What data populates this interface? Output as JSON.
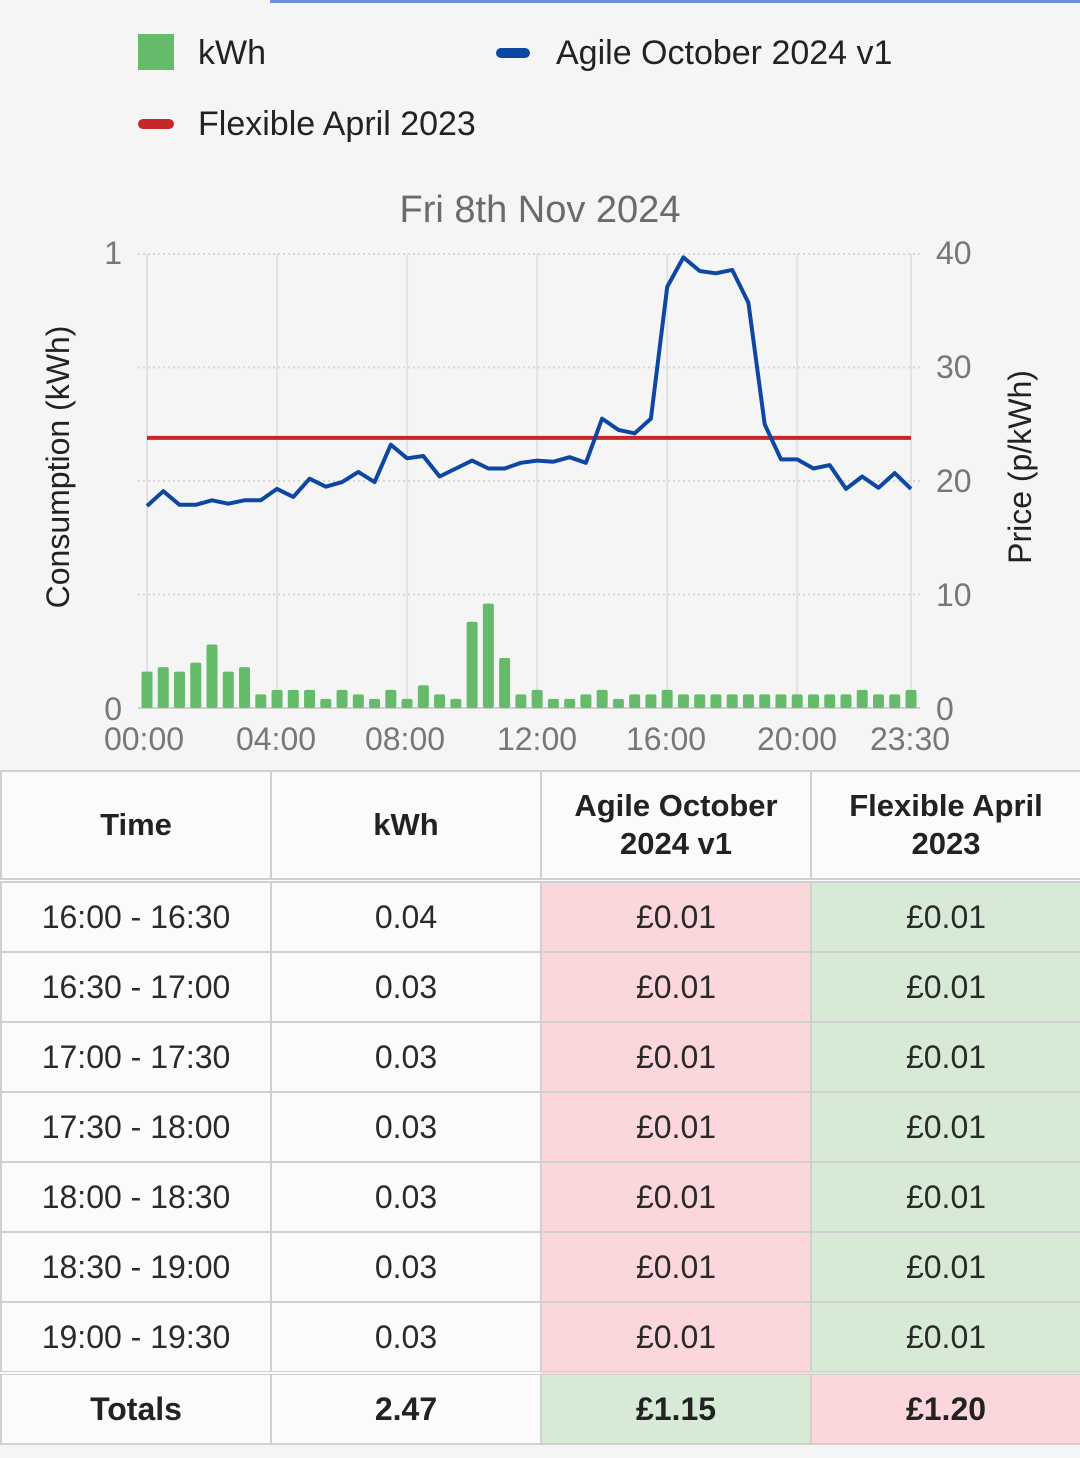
{
  "chart_data": {
    "type": "bar+line",
    "title": "Fri 8th Nov 2024",
    "ylabel_left": "Consumption (kWh)",
    "ylabel_right": "Price (p/kWh)",
    "ylim_left": [
      0,
      1
    ],
    "ylim_right": [
      0,
      40
    ],
    "y_left_ticks": [
      "0",
      "1"
    ],
    "y_right_ticks": [
      "0",
      "10",
      "20",
      "30",
      "40"
    ],
    "x_ticks": [
      "00:00",
      "04:00",
      "08:00",
      "12:00",
      "16:00",
      "20:00",
      "23:30"
    ],
    "grid": true,
    "legend_position": "top",
    "legend": [
      {
        "name": "kWh",
        "type": "bar",
        "color": "#66bb6a"
      },
      {
        "name": "Agile October 2024 v1",
        "type": "line",
        "color": "#0d47a1"
      },
      {
        "name": "Flexible April 2023",
        "type": "line",
        "color": "#c62828"
      }
    ],
    "x": [
      "00:00",
      "00:30",
      "01:00",
      "01:30",
      "02:00",
      "02:30",
      "03:00",
      "03:30",
      "04:00",
      "04:30",
      "05:00",
      "05:30",
      "06:00",
      "06:30",
      "07:00",
      "07:30",
      "08:00",
      "08:30",
      "09:00",
      "09:30",
      "10:00",
      "10:30",
      "11:00",
      "11:30",
      "12:00",
      "12:30",
      "13:00",
      "13:30",
      "14:00",
      "14:30",
      "15:00",
      "15:30",
      "16:00",
      "16:30",
      "17:00",
      "17:30",
      "18:00",
      "18:30",
      "19:00",
      "19:30",
      "20:00",
      "20:30",
      "21:00",
      "21:30",
      "22:00",
      "22:30",
      "23:00",
      "23:30"
    ],
    "series": [
      {
        "name": "kWh",
        "axis": "left",
        "values": [
          0.08,
          0.09,
          0.08,
          0.1,
          0.14,
          0.08,
          0.09,
          0.03,
          0.04,
          0.04,
          0.04,
          0.02,
          0.04,
          0.03,
          0.02,
          0.04,
          0.02,
          0.05,
          0.03,
          0.02,
          0.19,
          0.23,
          0.11,
          0.03,
          0.04,
          0.02,
          0.02,
          0.03,
          0.04,
          0.02,
          0.03,
          0.03,
          0.04,
          0.03,
          0.03,
          0.03,
          0.03,
          0.03,
          0.03,
          0.03,
          0.03,
          0.03,
          0.03,
          0.03,
          0.04,
          0.03,
          0.03,
          0.04
        ]
      },
      {
        "name": "Agile October 2024 v1",
        "axis": "right",
        "values": [
          17.8,
          19.1,
          17.9,
          17.9,
          18.3,
          18.0,
          18.3,
          18.3,
          19.3,
          18.6,
          20.2,
          19.5,
          19.9,
          20.8,
          19.9,
          23.2,
          22.0,
          22.2,
          20.4,
          21.1,
          21.8,
          21.1,
          21.1,
          21.6,
          21.8,
          21.7,
          22.1,
          21.6,
          25.5,
          24.5,
          24.2,
          25.5,
          37.1,
          39.7,
          38.5,
          38.3,
          38.6,
          35.7,
          25.0,
          21.9,
          21.9,
          21.1,
          21.4,
          19.3,
          20.4,
          19.4,
          20.7,
          19.3
        ]
      },
      {
        "name": "Flexible April 2023",
        "axis": "right",
        "values": [
          23.8,
          23.8,
          23.8,
          23.8,
          23.8,
          23.8,
          23.8,
          23.8,
          23.8,
          23.8,
          23.8,
          23.8,
          23.8,
          23.8,
          23.8,
          23.8,
          23.8,
          23.8,
          23.8,
          23.8,
          23.8,
          23.8,
          23.8,
          23.8,
          23.8,
          23.8,
          23.8,
          23.8,
          23.8,
          23.8,
          23.8,
          23.8,
          23.8,
          23.8,
          23.8,
          23.8,
          23.8,
          23.8,
          23.8,
          23.8,
          23.8,
          23.8,
          23.8,
          23.8,
          23.8,
          23.8,
          23.8,
          23.8
        ]
      }
    ]
  },
  "table": {
    "headers": {
      "time": "Time",
      "kwh": "kWh",
      "agile_line1": "Agile October",
      "agile_line2": "2024 v1",
      "flex_line1": "Flexible April",
      "flex_line2": "2023"
    },
    "rows": [
      {
        "time": "16:00 - 16:30",
        "kwh": "0.04",
        "agile": "£0.01",
        "flexible": "£0.01"
      },
      {
        "time": "16:30 - 17:00",
        "kwh": "0.03",
        "agile": "£0.01",
        "flexible": "£0.01"
      },
      {
        "time": "17:00 - 17:30",
        "kwh": "0.03",
        "agile": "£0.01",
        "flexible": "£0.01"
      },
      {
        "time": "17:30 - 18:00",
        "kwh": "0.03",
        "agile": "£0.01",
        "flexible": "£0.01"
      },
      {
        "time": "18:00 - 18:30",
        "kwh": "0.03",
        "agile": "£0.01",
        "flexible": "£0.01"
      },
      {
        "time": "18:30 - 19:00",
        "kwh": "0.03",
        "agile": "£0.01",
        "flexible": "£0.01"
      },
      {
        "time": "19:00 - 19:30",
        "kwh": "0.03",
        "agile": "£0.01",
        "flexible": "£0.01"
      }
    ],
    "totals": {
      "label": "Totals",
      "kwh": "2.47",
      "agile": "£1.15",
      "flexible": "£1.20"
    },
    "colors": {
      "cheaper": "#d6ead6",
      "dearer": "#fbd7db"
    }
  }
}
